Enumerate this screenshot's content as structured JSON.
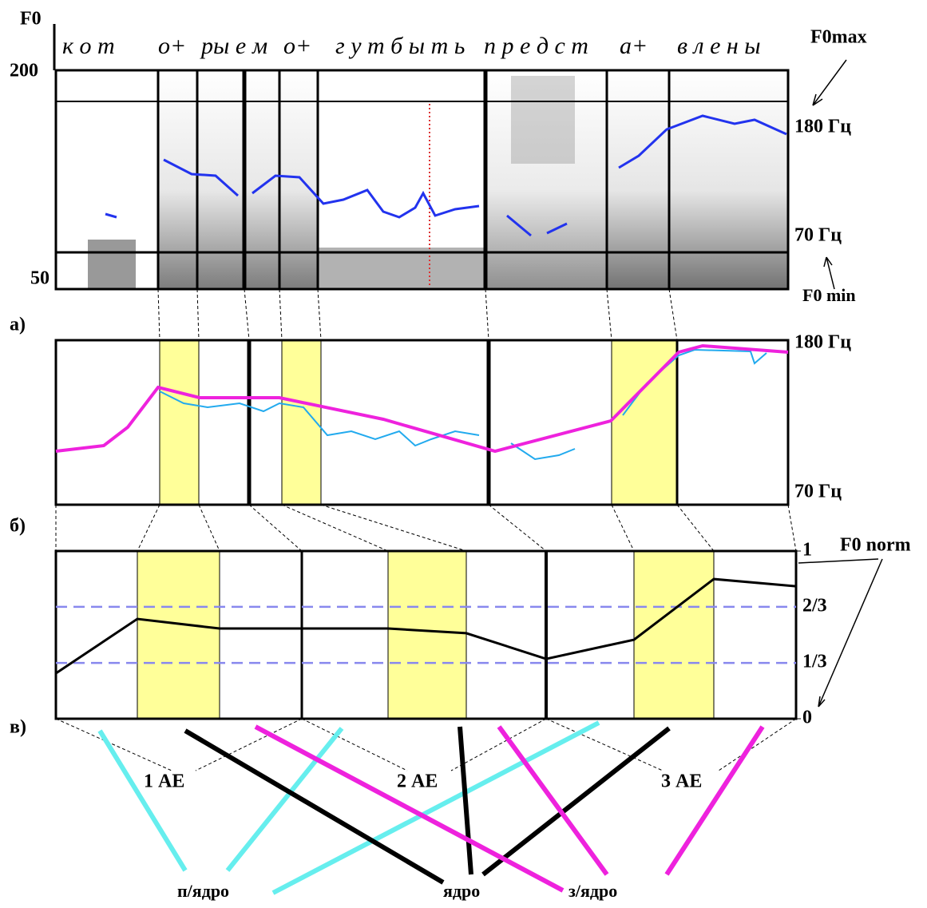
{
  "header": {
    "f0": "F0",
    "syllables": [
      "к о т",
      "о+",
      "ры е",
      "м",
      "о+",
      "г у т б ы т ь",
      "п р е д с т",
      "а+",
      "в л е н ы"
    ],
    "f0max": "F0max",
    "f0min": "F0 min"
  },
  "spectrogram": {
    "top_label": "200",
    "bottom_label": "50",
    "upper_hz": "180 Гц",
    "lower_hz": "70 Гц"
  },
  "panel_a": {
    "label": "а)",
    "upper_hz": "180 Гц",
    "lower_hz": "70 Гц"
  },
  "panel_b": {
    "label": "б)",
    "f0norm": "F0 norm",
    "ylim": [
      0,
      1
    ],
    "yticks": [
      0,
      {
        "value": 0.333,
        "label": "1/3"
      },
      {
        "value": 0.667,
        "label": "2/3"
      },
      1
    ],
    "values": [
      0.271,
      0.595,
      0.538,
      0.538,
      0.538,
      0.51,
      0.357,
      0.471,
      0.833,
      0.79
    ]
  },
  "panel_c": {
    "label": "в)",
    "units": [
      "1 АЕ",
      "2 АЕ",
      "3 АЕ"
    ],
    "roles": [
      "п/ядро",
      "ядро",
      "з/ядро"
    ]
  }
}
